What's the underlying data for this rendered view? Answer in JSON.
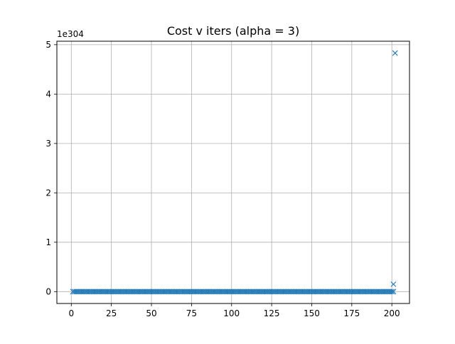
{
  "chart_data": {
    "type": "scatter",
    "title": "Cost v iters (alpha = 3)",
    "xlabel": "",
    "ylabel": "",
    "y_offset_label": "1e304",
    "xlim": [
      -9,
      211
    ],
    "ylim": [
      -0.24,
      5.07
    ],
    "x_ticks": [
      0,
      25,
      50,
      75,
      100,
      125,
      150,
      175,
      200
    ],
    "x_tick_labels": [
      "0",
      "25",
      "50",
      "75",
      "100",
      "125",
      "150",
      "175",
      "200"
    ],
    "y_ticks": [
      0,
      1,
      2,
      3,
      4,
      5
    ],
    "y_tick_labels": [
      "0",
      "1",
      "2",
      "3",
      "4",
      "5"
    ],
    "grid": true,
    "marker": "x",
    "color": "#1f77b4",
    "series": [
      {
        "x_start": 1,
        "x_end": 201,
        "y_base": 0,
        "outliers": [
          {
            "x": 201,
            "y": 0.15
          },
          {
            "x": 202,
            "y": 4.83
          }
        ]
      }
    ]
  }
}
